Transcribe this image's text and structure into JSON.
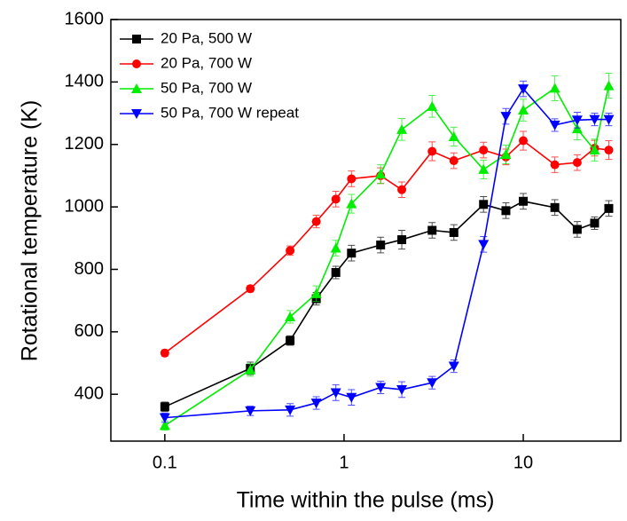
{
  "chart_data": {
    "type": "line",
    "xlabel": "Time within the pulse (ms)",
    "ylabel": "Rotational temperature (K)",
    "x": [
      0.1,
      0.3,
      0.5,
      0.7,
      0.9,
      1.1,
      1.6,
      2.1,
      3.1,
      4.1,
      6,
      8,
      10,
      15,
      20,
      25,
      30
    ],
    "xscale": "log",
    "xlim": [
      0.05,
      35
    ],
    "xticks": [
      0.1,
      1,
      10
    ],
    "ylim": [
      250,
      1600
    ],
    "yticks": [
      400,
      600,
      800,
      1000,
      1200,
      1400,
      1600
    ],
    "legend": "upper left",
    "series": [
      {
        "name": "20 Pa, 500 W",
        "color": "#000000",
        "marker": "square",
        "values": [
          360,
          483,
          572,
          706,
          790,
          852,
          878,
          895,
          925,
          918,
          1008,
          988,
          1018,
          998,
          928,
          948,
          995
        ],
        "errors": [
          15,
          20,
          15,
          20,
          20,
          25,
          25,
          30,
          25,
          25,
          25,
          25,
          25,
          25,
          25,
          20,
          25
        ]
      },
      {
        "name": "20 Pa, 700 W",
        "color": "#ff0000",
        "marker": "circle",
        "values": [
          532,
          738,
          860,
          953,
          1025,
          1090,
          1100,
          1055,
          1178,
          1148,
          1182,
          1160,
          1212,
          1135,
          1142,
          1188,
          1182
        ],
        "errors": [
          10,
          10,
          15,
          20,
          25,
          25,
          25,
          25,
          30,
          25,
          25,
          25,
          30,
          25,
          25,
          25,
          30
        ]
      },
      {
        "name": "50 Pa, 700 W",
        "color": "#00ee00",
        "marker": "triangle-up",
        "values": [
          300,
          478,
          648,
          722,
          868,
          1010,
          1105,
          1248,
          1322,
          1225,
          1120,
          1168,
          1310,
          1380,
          1250,
          1182,
          1388
        ],
        "errors": [
          15,
          20,
          20,
          25,
          25,
          30,
          30,
          35,
          35,
          30,
          30,
          30,
          35,
          40,
          35,
          35,
          40
        ]
      },
      {
        "name": "50 Pa, 700 W repeat",
        "color": "#0000ff",
        "marker": "triangle-down",
        "values": [
          325,
          347,
          350,
          372,
          405,
          390,
          422,
          415,
          437,
          490,
          880,
          1290,
          1378,
          1262,
          1278,
          1280,
          1280
        ],
        "errors": [
          15,
          15,
          20,
          20,
          25,
          25,
          20,
          25,
          20,
          20,
          25,
          25,
          25,
          20,
          25,
          20,
          20
        ]
      }
    ]
  }
}
